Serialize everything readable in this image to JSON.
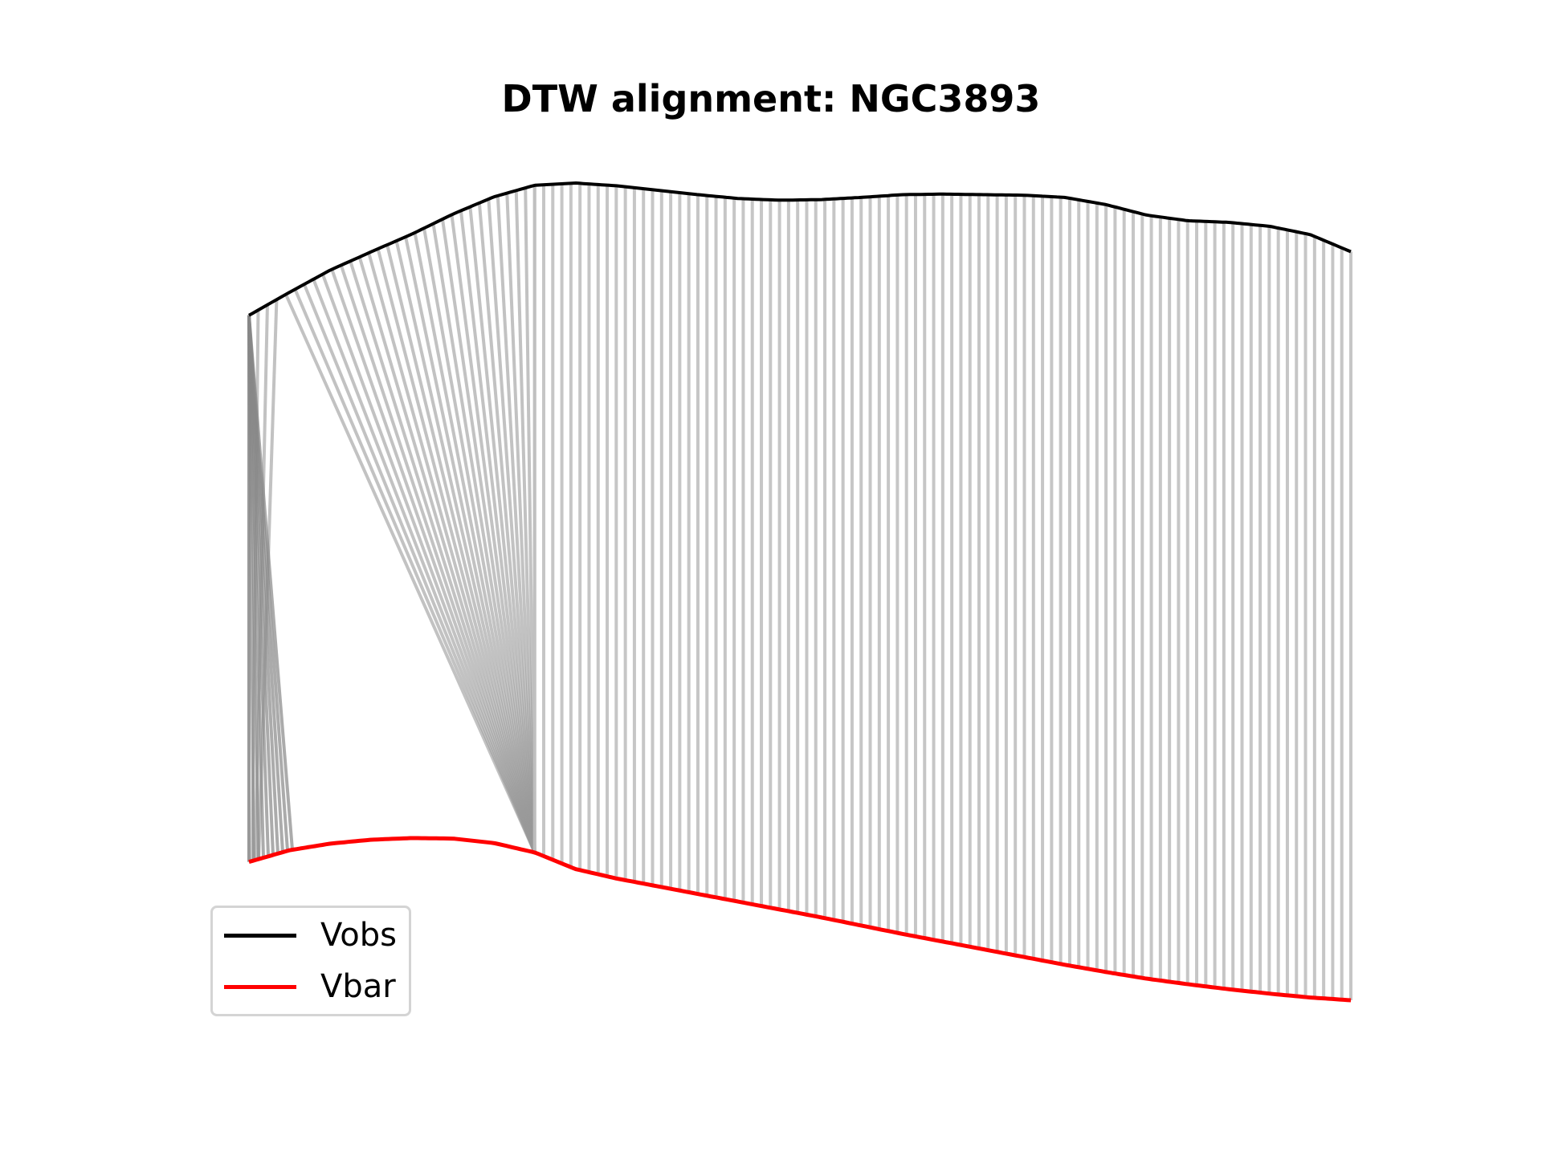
{
  "chart_data": {
    "type": "line",
    "title": "DTW alignment: NGC3893",
    "xlabel": "",
    "ylabel": "",
    "axes_visible": false,
    "grid": false,
    "legend_placement": "lower-left",
    "series": [
      {
        "name": "Vobs",
        "color": "#000000",
        "values": [
          0.0,
          0.042,
          0.082,
          0.115,
          0.147,
          0.183,
          0.214,
          0.235,
          0.239,
          0.234,
          0.226,
          0.218,
          0.211,
          0.208,
          0.209,
          0.213,
          0.218,
          0.219,
          0.218,
          0.217,
          0.213,
          0.2,
          0.181,
          0.171,
          0.168,
          0.161,
          0.146,
          0.115
        ]
      },
      {
        "name": "Vbar",
        "color": "#ff0000",
        "values": [
          -0.987,
          -0.966,
          -0.954,
          -0.947,
          -0.944,
          -0.945,
          -0.953,
          -0.97,
          -1.0,
          -1.017,
          -1.031,
          -1.045,
          -1.059,
          -1.073,
          -1.087,
          -1.102,
          -1.117,
          -1.131,
          -1.145,
          -1.159,
          -1.173,
          -1.186,
          -1.198,
          -1.208,
          -1.217,
          -1.225,
          -1.232,
          -1.237
        ]
      }
    ],
    "n_samples": 28,
    "warp_samples": 8,
    "connector_color": "#c0c0c0"
  }
}
